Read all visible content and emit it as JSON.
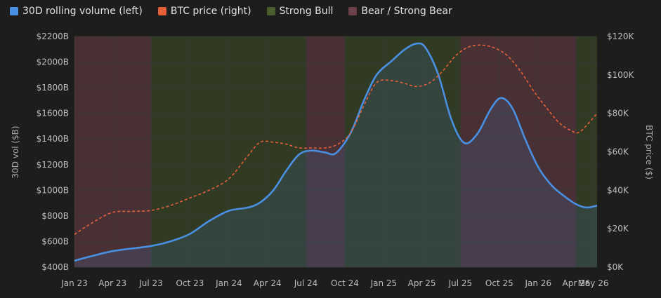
{
  "colors": {
    "background": "#1d1d1b",
    "volume_line": "#4a90e2",
    "price_line": "#e5603a",
    "strong_bull": "#4b5f2e",
    "bear": "#6b4048",
    "grid": "#333330"
  },
  "chart_data": {
    "type": "line",
    "x_type": "date",
    "x_ticks": [
      "Jan 23",
      "Apr 23",
      "Jul 23",
      "Oct 23",
      "Jan 24",
      "Apr 24",
      "Jul 24",
      "Oct 24",
      "Jan 25",
      "Apr 25",
      "Jul 25",
      "Oct 25",
      "Jan 26",
      "Apr 26",
      "May 26"
    ],
    "x_range": [
      "2023-01-01",
      "2026-05-20"
    ],
    "y_left": {
      "label": "30D vol ($B)",
      "range": [
        400,
        2200
      ],
      "ticks": [
        "$400B",
        "$600B",
        "$800B",
        "$1000B",
        "$1200B",
        "$1400B",
        "$1600B",
        "$1800B",
        "$2000B",
        "$2200B"
      ]
    },
    "y_right": {
      "label": "BTC price ($)",
      "range": [
        0,
        120000
      ],
      "ticks": [
        "$0K",
        "$20K",
        "$40K",
        "$60K",
        "$80K",
        "$100K",
        "$120K"
      ]
    },
    "grid": true,
    "legend_position": "top-left",
    "series": [
      {
        "name": "30D rolling volume (left)",
        "axis": "left",
        "style": "solid",
        "points": [
          [
            "2023-01-01",
            450
          ],
          [
            "2023-02-15",
            490
          ],
          [
            "2023-04-01",
            525
          ],
          [
            "2023-05-15",
            545
          ],
          [
            "2023-07-01",
            565
          ],
          [
            "2023-08-15",
            600
          ],
          [
            "2023-10-01",
            660
          ],
          [
            "2023-11-15",
            760
          ],
          [
            "2024-01-01",
            840
          ],
          [
            "2024-02-15",
            865
          ],
          [
            "2024-03-15",
            905
          ],
          [
            "2024-04-15",
            1000
          ],
          [
            "2024-05-15",
            1150
          ],
          [
            "2024-06-15",
            1280
          ],
          [
            "2024-07-15",
            1310
          ],
          [
            "2024-08-15",
            1295
          ],
          [
            "2024-09-10",
            1290
          ],
          [
            "2024-10-15",
            1450
          ],
          [
            "2024-11-15",
            1700
          ],
          [
            "2024-12-15",
            1900
          ],
          [
            "2025-01-20",
            2010
          ],
          [
            "2025-02-20",
            2100
          ],
          [
            "2025-03-20",
            2145
          ],
          [
            "2025-04-10",
            2110
          ],
          [
            "2025-05-10",
            1900
          ],
          [
            "2025-06-10",
            1550
          ],
          [
            "2025-07-10",
            1370
          ],
          [
            "2025-08-10",
            1440
          ],
          [
            "2025-09-10",
            1630
          ],
          [
            "2025-10-05",
            1720
          ],
          [
            "2025-11-01",
            1640
          ],
          [
            "2025-12-01",
            1400
          ],
          [
            "2026-01-01",
            1180
          ],
          [
            "2026-02-01",
            1040
          ],
          [
            "2026-03-01",
            960
          ],
          [
            "2026-04-01",
            890
          ],
          [
            "2026-04-25",
            865
          ],
          [
            "2026-05-20",
            880
          ]
        ]
      },
      {
        "name": "BTC price (right)",
        "axis": "right",
        "style": "dashed",
        "points": [
          [
            "2023-01-01",
            17000
          ],
          [
            "2023-02-15",
            23500
          ],
          [
            "2023-04-01",
            28500
          ],
          [
            "2023-05-15",
            29000
          ],
          [
            "2023-07-01",
            29500
          ],
          [
            "2023-08-15",
            32000
          ],
          [
            "2023-10-01",
            36000
          ],
          [
            "2023-11-15",
            40000
          ],
          [
            "2024-01-01",
            46000
          ],
          [
            "2024-02-15",
            58000
          ],
          [
            "2024-03-15",
            65000
          ],
          [
            "2024-04-15",
            65000
          ],
          [
            "2024-05-15",
            64000
          ],
          [
            "2024-06-15",
            62000
          ],
          [
            "2024-07-15",
            62000
          ],
          [
            "2024-08-15",
            62000
          ],
          [
            "2024-09-15",
            64000
          ],
          [
            "2024-10-15",
            70000
          ],
          [
            "2024-11-15",
            84000
          ],
          [
            "2024-12-15",
            96000
          ],
          [
            "2025-01-20",
            97000
          ],
          [
            "2025-02-20",
            95500
          ],
          [
            "2025-03-20",
            94000
          ],
          [
            "2025-04-20",
            96000
          ],
          [
            "2025-05-20",
            102000
          ],
          [
            "2025-06-20",
            110000
          ],
          [
            "2025-07-20",
            114500
          ],
          [
            "2025-08-20",
            115500
          ],
          [
            "2025-09-20",
            114000
          ],
          [
            "2025-10-20",
            110000
          ],
          [
            "2025-11-20",
            102000
          ],
          [
            "2025-12-20",
            92000
          ],
          [
            "2026-01-20",
            83000
          ],
          [
            "2026-02-20",
            75000
          ],
          [
            "2026-03-20",
            71000
          ],
          [
            "2026-04-10",
            70500
          ],
          [
            "2026-05-20",
            80000
          ]
        ]
      }
    ],
    "regimes": [
      {
        "name": "Bear / Strong Bear",
        "start": "2023-01-01",
        "end": "2023-07-01"
      },
      {
        "name": "Strong Bull",
        "start": "2023-07-01",
        "end": "2024-07-01"
      },
      {
        "name": "Bear / Strong Bear",
        "start": "2024-07-01",
        "end": "2024-10-01"
      },
      {
        "name": "Strong Bull",
        "start": "2024-10-01",
        "end": "2025-07-01"
      },
      {
        "name": "Bear / Strong Bear",
        "start": "2025-07-01",
        "end": "2026-04-01"
      },
      {
        "name": "Strong Bull",
        "start": "2026-04-01",
        "end": "2026-05-20"
      }
    ],
    "legend": [
      {
        "label": "30D rolling volume (left)",
        "color": "#4a90e2"
      },
      {
        "label": "BTC price (right)",
        "color": "#e5603a"
      },
      {
        "label": "Strong Bull",
        "color": "#4b5f2e"
      },
      {
        "label": "Bear / Strong Bear",
        "color": "#6b4048"
      }
    ]
  }
}
